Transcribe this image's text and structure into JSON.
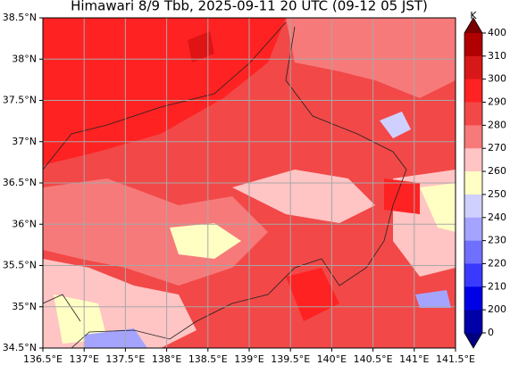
{
  "title": "Himawari 8/9 Tbb, 2025-09-11 20 UTC (09-12 05 JST)",
  "map": {
    "lon_labels": [
      "136.5°E",
      "137°E",
      "137.5°E",
      "138°E",
      "138.5°E",
      "139°E",
      "139.5°E",
      "140°E",
      "140.5°E",
      "141°E",
      "141.5°E"
    ],
    "lat_labels": [
      "38.5°N",
      "38°N",
      "37.5°N",
      "37°N",
      "36.5°N",
      "36°N",
      "35.5°N",
      "35°N",
      "34.5°N"
    ]
  },
  "colorbar": {
    "unit": "K",
    "levels": [
      400,
      310,
      300,
      290,
      280,
      270,
      260,
      250,
      240,
      230,
      220,
      210,
      200,
      0
    ],
    "colors": [
      "#b00000",
      "#d81818",
      "#ff2222",
      "#f24848",
      "#f77a7a",
      "#ffc4c4",
      "#ffffc4",
      "#d0d0ff",
      "#a4a4ff",
      "#7070ff",
      "#3a3aff",
      "#0000e6",
      "#0000a8"
    ],
    "over_color": "#7a0000",
    "under_color": "#000080"
  }
}
